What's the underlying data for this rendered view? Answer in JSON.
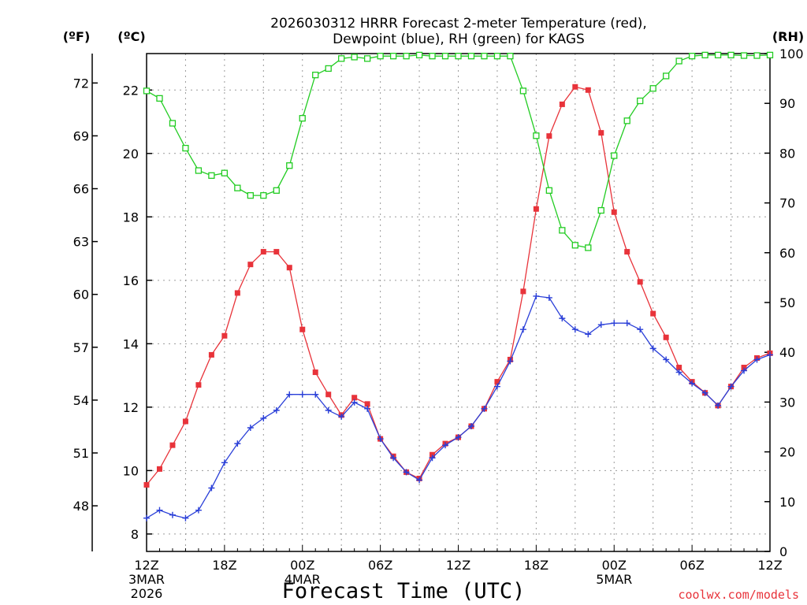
{
  "chart_data": {
    "type": "line",
    "title_line1": "2026030312 HRRR Forecast 2-meter Temperature (red),",
    "title_line2": "Dewpoint (blue), RH (green) for KAGS",
    "xlabel": "Forecast Time (UTC)",
    "credit": "coolwx.com/models",
    "units": {
      "fahrenheit": "(ºF)",
      "celsius": "(ºC)",
      "rh": "(RH)"
    },
    "x_hours": [
      0,
      1,
      2,
      3,
      4,
      5,
      6,
      7,
      8,
      9,
      10,
      11,
      12,
      13,
      14,
      15,
      16,
      17,
      18,
      19,
      20,
      21,
      22,
      23,
      24,
      25,
      26,
      27,
      28,
      29,
      30,
      31,
      32,
      33,
      34,
      35,
      36,
      37,
      38,
      39,
      40,
      41,
      42,
      43,
      44,
      45,
      46,
      47,
      48
    ],
    "xlim": [
      0,
      48
    ],
    "ylim_c": [
      7.45,
      23.15
    ],
    "ylim_rh": [
      0,
      100
    ],
    "y_ticks_c": [
      "8",
      "10",
      "12",
      "14",
      "16",
      "18",
      "20",
      "22"
    ],
    "y_ticks_f": [
      "48",
      "51",
      "54",
      "57",
      "60",
      "63",
      "66",
      "69",
      "72"
    ],
    "y_ticks_rh": [
      "0",
      "10",
      "20",
      "30",
      "40",
      "50",
      "60",
      "70",
      "80",
      "90",
      "100"
    ],
    "x_ticks": [
      {
        "hour": 0,
        "label": "12Z",
        "sub1": "3MAR",
        "sub2": "2026"
      },
      {
        "hour": 6,
        "label": "18Z",
        "sub1": "",
        "sub2": ""
      },
      {
        "hour": 12,
        "label": "00Z",
        "sub1": "4MAR",
        "sub2": ""
      },
      {
        "hour": 18,
        "label": "06Z",
        "sub1": "",
        "sub2": ""
      },
      {
        "hour": 24,
        "label": "12Z",
        "sub1": "",
        "sub2": ""
      },
      {
        "hour": 30,
        "label": "18Z",
        "sub1": "",
        "sub2": ""
      },
      {
        "hour": 36,
        "label": "00Z",
        "sub1": "5MAR",
        "sub2": ""
      },
      {
        "hour": 42,
        "label": "06Z",
        "sub1": "",
        "sub2": ""
      },
      {
        "hour": 48,
        "label": "12Z",
        "sub1": "",
        "sub2": ""
      }
    ],
    "series": [
      {
        "name": "Temperature",
        "unit": "C",
        "color": "#e8333a",
        "marker": "filled-square",
        "values": [
          9.55,
          10.05,
          10.8,
          11.55,
          12.7,
          13.65,
          14.25,
          15.6,
          16.5,
          16.9,
          16.9,
          16.4,
          14.45,
          13.1,
          12.4,
          11.75,
          12.3,
          12.1,
          11.0,
          10.45,
          9.95,
          9.75,
          10.5,
          10.85,
          11.05,
          11.4,
          11.95,
          12.8,
          13.5,
          15.65,
          18.25,
          20.55,
          21.55,
          22.1,
          22.0,
          20.65,
          18.15,
          16.9,
          15.95,
          14.95,
          14.2,
          13.25,
          12.8,
          12.45,
          12.05,
          12.65,
          13.25,
          13.55,
          13.7
        ]
      },
      {
        "name": "Dewpoint",
        "unit": "C",
        "color": "#2a3fd8",
        "marker": "plus",
        "values": [
          8.5,
          8.75,
          8.6,
          8.5,
          8.75,
          9.45,
          10.25,
          10.85,
          11.35,
          11.65,
          11.9,
          12.4,
          12.4,
          12.4,
          11.9,
          11.7,
          12.15,
          11.95,
          11.0,
          10.4,
          9.95,
          9.7,
          10.4,
          10.8,
          11.05,
          11.4,
          11.95,
          12.65,
          13.45,
          14.45,
          15.5,
          15.45,
          14.8,
          14.45,
          14.3,
          14.6,
          14.65,
          14.65,
          14.45,
          13.85,
          13.5,
          13.1,
          12.75,
          12.45,
          12.05,
          12.65,
          13.15,
          13.5,
          13.65
        ]
      },
      {
        "name": "RH",
        "unit": "%",
        "color": "#22cc22",
        "marker": "open-square",
        "values": [
          92.5,
          91.0,
          86.0,
          81.0,
          76.5,
          75.5,
          76.0,
          73.0,
          71.5,
          71.5,
          72.5,
          77.5,
          87.0,
          95.7,
          97.0,
          99.0,
          99.3,
          99.0,
          99.5,
          99.5,
          99.5,
          99.7,
          99.5,
          99.5,
          99.5,
          99.5,
          99.5,
          99.5,
          99.5,
          92.5,
          83.5,
          72.5,
          64.5,
          61.5,
          61.0,
          68.5,
          79.5,
          86.5,
          90.5,
          93.0,
          95.5,
          98.5,
          99.5,
          99.7,
          99.7,
          99.7,
          99.6,
          99.6,
          99.7
        ]
      }
    ]
  }
}
